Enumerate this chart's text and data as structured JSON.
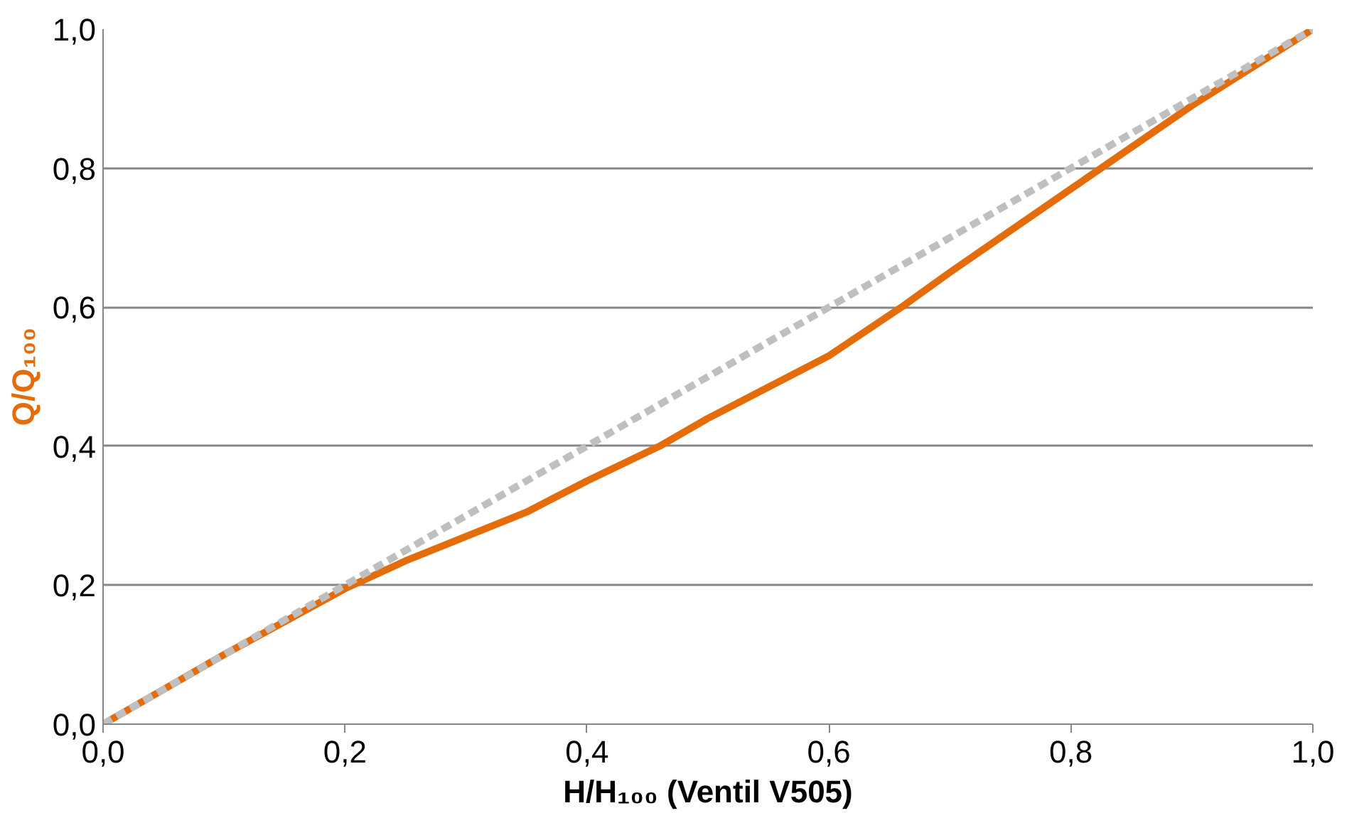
{
  "chart_data": {
    "type": "line",
    "xlabel": "H/H₁₀₀ (Ventil V505)",
    "ylabel": "Q/Q₁₀₀",
    "xlim": [
      0,
      1
    ],
    "ylim": [
      0,
      1
    ],
    "xticks": [
      {
        "value": 0,
        "label": "0,0"
      },
      {
        "value": 0.2,
        "label": "0,2"
      },
      {
        "value": 0.4,
        "label": "0,4"
      },
      {
        "value": 0.6,
        "label": "0,6"
      },
      {
        "value": 0.8,
        "label": "0,8"
      },
      {
        "value": 1,
        "label": "1,0"
      }
    ],
    "yticks": [
      {
        "value": 0,
        "label": "0,0"
      },
      {
        "value": 0.2,
        "label": "0,2"
      },
      {
        "value": 0.4,
        "label": "0,4"
      },
      {
        "value": 0.6,
        "label": "0,6"
      },
      {
        "value": 0.8,
        "label": "0,8"
      },
      {
        "value": 1,
        "label": "1,0"
      }
    ],
    "grid": "y",
    "marker": "none",
    "series": [
      {
        "color": "#e46c0a",
        "line_style": "solid",
        "x": [
          0,
          0.1,
          0.2,
          0.25,
          0.3,
          0.35,
          0.4,
          0.46,
          0.5,
          0.6,
          0.66,
          0.7,
          0.8,
          0.9,
          1.0
        ],
        "values": [
          0,
          0.1,
          0.195,
          0.235,
          0.27,
          0.305,
          0.35,
          0.4,
          0.44,
          0.53,
          0.6,
          0.65,
          0.77,
          0.89,
          1.0
        ]
      },
      {
        "color": "#bfbfbf",
        "line_style": "dashed",
        "x": [
          0,
          1
        ],
        "values": [
          0,
          1
        ]
      }
    ]
  }
}
